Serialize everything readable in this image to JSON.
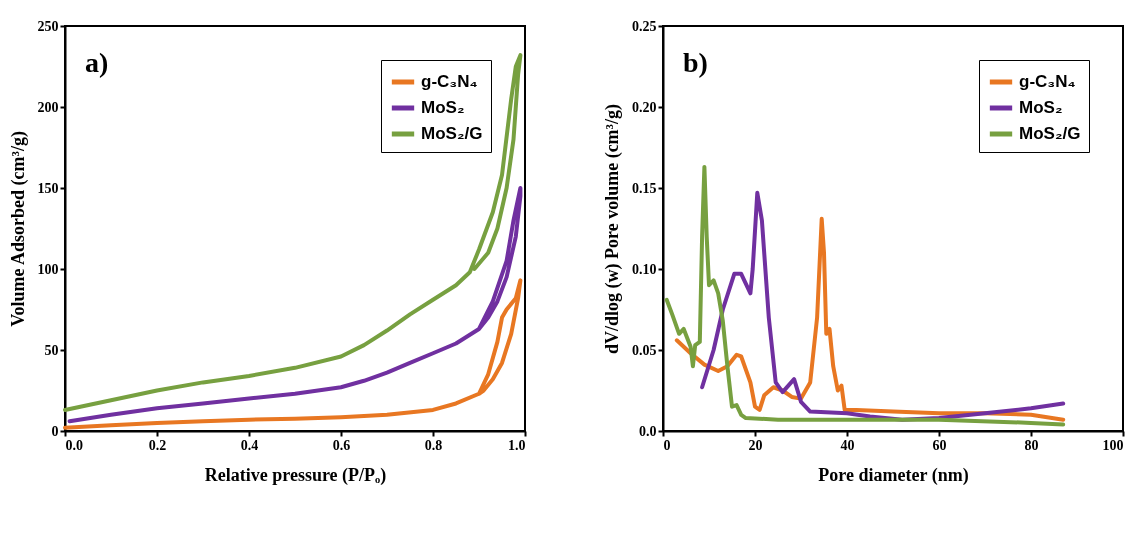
{
  "chart_data": [
    {
      "type": "line",
      "xlabel": "Relative pressure (P/Pₒ)",
      "ylabel": "Volume Adsorbed (cm³/g)",
      "annotations": [
        "a)"
      ],
      "legend": "top right",
      "grid": false,
      "xlim": [
        0,
        1.0
      ],
      "xticks": [
        {
          "value": 0,
          "label": "0.0"
        },
        0.2,
        0.4,
        0.6,
        0.8,
        {
          "value": 1.0,
          "label": "1.0"
        }
      ],
      "ylim": [
        0,
        250
      ],
      "yticks": [
        0,
        50,
        100,
        150,
        200,
        250
      ],
      "series": [
        {
          "name": "g-C₃N₄",
          "color": "#e87722",
          "x": [
            0,
            0.1,
            0.2,
            0.3,
            0.4,
            0.5,
            0.6,
            0.7,
            0.8,
            0.85,
            0.9,
            0.92,
            0.94,
            0.95,
            0.96,
            0.98,
            0.99,
            0.985,
            0.97,
            0.95,
            0.93,
            0.91,
            0.9
          ],
          "values": [
            2,
            3.5,
            5,
            6,
            7,
            7.5,
            8.5,
            10,
            13,
            17,
            23,
            35,
            55,
            70,
            75,
            82,
            93,
            82,
            60,
            42,
            32,
            25,
            23
          ]
        },
        {
          "name": "MoS₂",
          "color": "#7030a0",
          "x": [
            0.01,
            0.1,
            0.2,
            0.3,
            0.4,
            0.5,
            0.6,
            0.65,
            0.7,
            0.75,
            0.8,
            0.85,
            0.9,
            0.93,
            0.96,
            0.975,
            0.99,
            0.99,
            0.98,
            0.96,
            0.94,
            0.92,
            0.9
          ],
          "values": [
            6,
            10,
            14,
            17,
            20,
            23,
            27,
            31,
            36,
            42,
            48,
            54,
            63,
            80,
            105,
            130,
            150,
            145,
            120,
            95,
            80,
            70,
            63
          ]
        },
        {
          "name": "MoS₂/G",
          "color": "#77a040",
          "x": [
            0,
            0.1,
            0.2,
            0.3,
            0.4,
            0.5,
            0.6,
            0.65,
            0.7,
            0.75,
            0.8,
            0.85,
            0.88,
            0.9,
            0.93,
            0.95,
            0.97,
            0.98,
            0.99,
            0.985,
            0.975,
            0.96,
            0.94,
            0.92,
            0.89
          ],
          "values": [
            13,
            19,
            25,
            30,
            34,
            39,
            46,
            53,
            62,
            72,
            81,
            90,
            98,
            112,
            135,
            158,
            205,
            225,
            232,
            220,
            180,
            150,
            125,
            110,
            100
          ]
        }
      ]
    },
    {
      "type": "line",
      "xlabel": "Pore diameter (nm)",
      "ylabel": "dV/dlog (w) Pore volume (cm³/g)",
      "annotations": [
        "b)"
      ],
      "legend": "top right",
      "grid": false,
      "xlim": [
        0,
        100
      ],
      "xticks": [
        0,
        20,
        40,
        60,
        80,
        100
      ],
      "ylim": [
        0,
        0.25
      ],
      "yticks": [
        {
          "value": 0,
          "label": "0.0"
        },
        0.05,
        {
          "value": 0.1,
          "label": "0.10"
        },
        0.15,
        {
          "value": 0.2,
          "label": "0.20"
        },
        0.25
      ],
      "series": [
        {
          "name": "g-C₃N₄",
          "color": "#e87722",
          "x": [
            3,
            6,
            9,
            12,
            14,
            16,
            17,
            19,
            20,
            21,
            22,
            24,
            26,
            28,
            30,
            32,
            33.5,
            34.5,
            35,
            35.5,
            36.2,
            37,
            38,
            38.8,
            39.5,
            42,
            50,
            60,
            70,
            80,
            87
          ],
          "values": [
            0.056,
            0.048,
            0.041,
            0.037,
            0.04,
            0.047,
            0.046,
            0.03,
            0.015,
            0.013,
            0.022,
            0.027,
            0.025,
            0.021,
            0.02,
            0.03,
            0.07,
            0.131,
            0.11,
            0.06,
            0.063,
            0.04,
            0.025,
            0.028,
            0.013,
            0.013,
            0.012,
            0.011,
            0.011,
            0.01,
            0.007
          ]
        },
        {
          "name": "MoS₂",
          "color": "#7030a0",
          "x": [
            8.5,
            11,
            13,
            15.5,
            17,
            19,
            19.5,
            20.5,
            21.5,
            23,
            24.5,
            26,
            28.5,
            30,
            32,
            40,
            45,
            52,
            60,
            70,
            80,
            87
          ],
          "values": [
            0.027,
            0.05,
            0.075,
            0.097,
            0.097,
            0.085,
            0.1,
            0.147,
            0.13,
            0.07,
            0.03,
            0.024,
            0.032,
            0.018,
            0.012,
            0.011,
            0.009,
            0.007,
            0.008,
            0.011,
            0.014,
            0.017
          ]
        },
        {
          "name": "MoS₂/G",
          "color": "#77a040",
          "x": [
            0.8,
            2,
            3.5,
            4.5,
            6,
            6.5,
            7,
            8,
            8.5,
            9,
            9.5,
            10,
            11,
            12,
            13,
            14,
            15,
            16,
            17,
            18,
            25,
            40,
            60,
            80,
            87
          ],
          "values": [
            0.081,
            0.072,
            0.06,
            0.063,
            0.052,
            0.04,
            0.053,
            0.055,
            0.12,
            0.163,
            0.12,
            0.09,
            0.093,
            0.085,
            0.068,
            0.04,
            0.015,
            0.016,
            0.01,
            0.008,
            0.007,
            0.007,
            0.007,
            0.005,
            0.004
          ]
        }
      ]
    }
  ]
}
